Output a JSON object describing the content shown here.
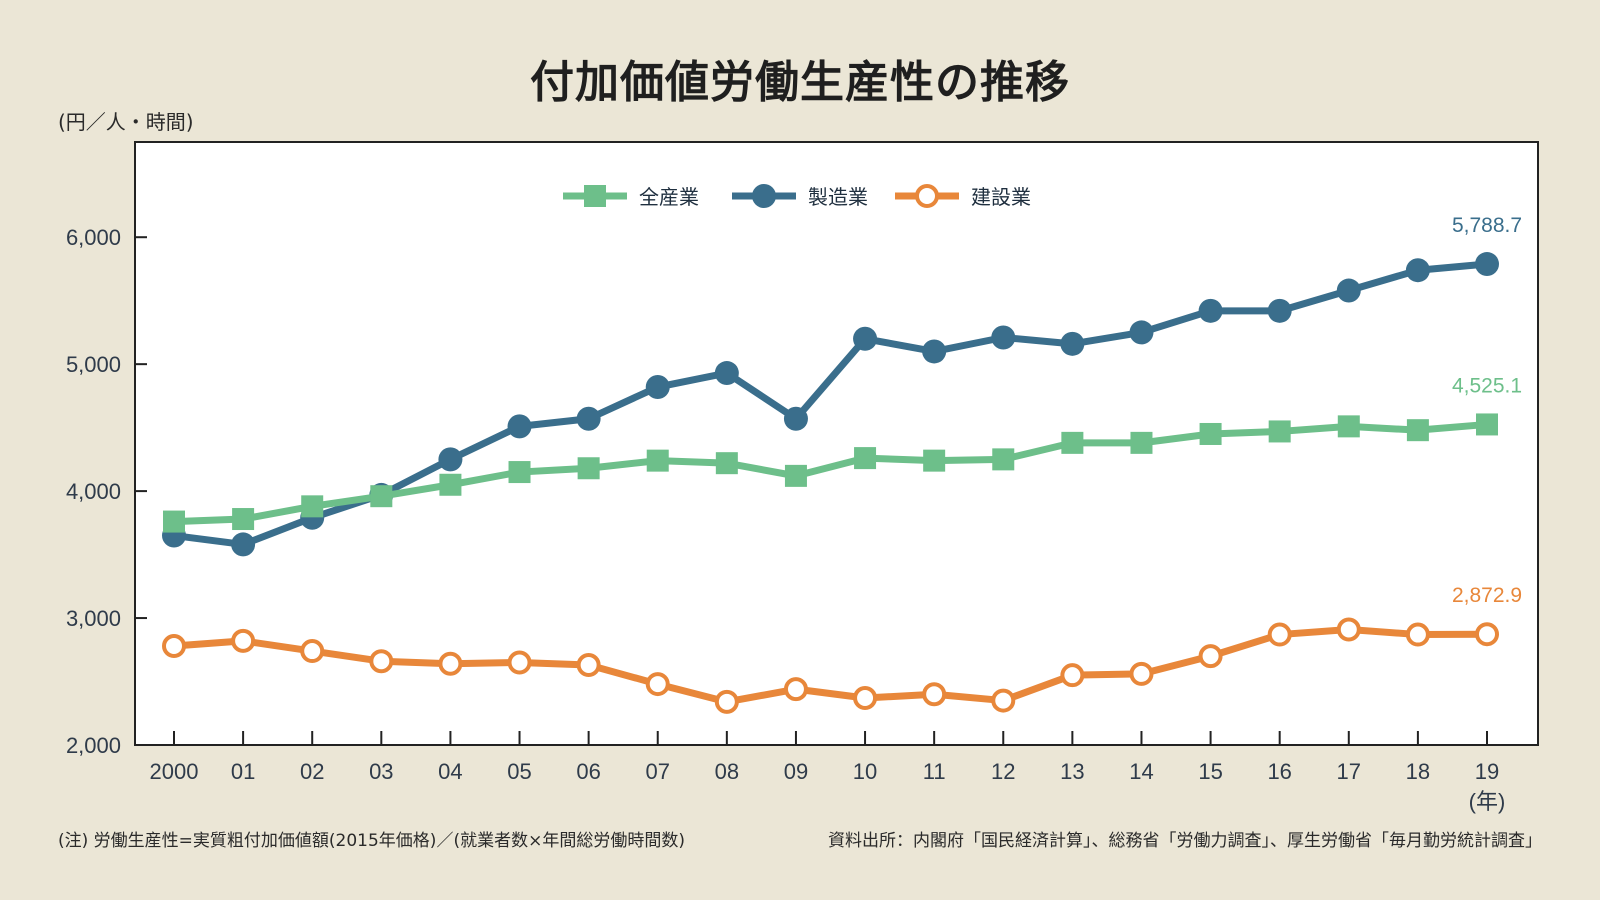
{
  "title": "付加価値労働生産性の推移",
  "unit_label": "(円／人・時間)",
  "note": "(注) 労働生産性=実質粗付加価値額(2015年価格)／(就業者数×年間総労働時間数)",
  "source": "資料出所：内閣府「国民経済計算」、総務省「労働力調査」、厚生労働省「毎月勤労統計調査」",
  "chart_data": {
    "type": "line",
    "categories": [
      "2000",
      "01",
      "02",
      "03",
      "04",
      "05",
      "06",
      "07",
      "08",
      "09",
      "10",
      "11",
      "12",
      "13",
      "14",
      "15",
      "16",
      "17",
      "18",
      "19"
    ],
    "x_unit": "(年)",
    "ylim": [
      2000,
      6750
    ],
    "yticks": [
      2000,
      3000,
      4000,
      5000,
      6000
    ],
    "ytick_labels": [
      "2,000",
      "3,000",
      "4,000",
      "5,000",
      "6,000"
    ],
    "grid": false,
    "legend_position": "top-center",
    "series": [
      {
        "name": "全産業",
        "color": "#6dbf8a",
        "marker": "square",
        "values": [
          3760,
          3780,
          3880,
          3960,
          4050,
          4150,
          4180,
          4240,
          4220,
          4120,
          4260,
          4240,
          4250,
          4380,
          4380,
          4450,
          4470,
          4510,
          4480,
          4525.1
        ],
        "end_label": "4,525.1"
      },
      {
        "name": "製造業",
        "color": "#3a6e8c",
        "marker": "circle",
        "values": [
          3650,
          3580,
          3790,
          3970,
          4250,
          4510,
          4570,
          4820,
          4930,
          4570,
          5200,
          5100,
          5210,
          5160,
          5250,
          5420,
          5420,
          5580,
          5740,
          5788.7
        ],
        "end_label": "5,788.7"
      },
      {
        "name": "建設業",
        "color": "#e8873a",
        "marker": "open-circle",
        "values": [
          2780,
          2820,
          2740,
          2660,
          2640,
          2650,
          2630,
          2480,
          2340,
          2440,
          2370,
          2400,
          2350,
          2550,
          2560,
          2700,
          2870,
          2910,
          2870,
          2872.9
        ],
        "end_label": "2,872.9"
      }
    ]
  }
}
